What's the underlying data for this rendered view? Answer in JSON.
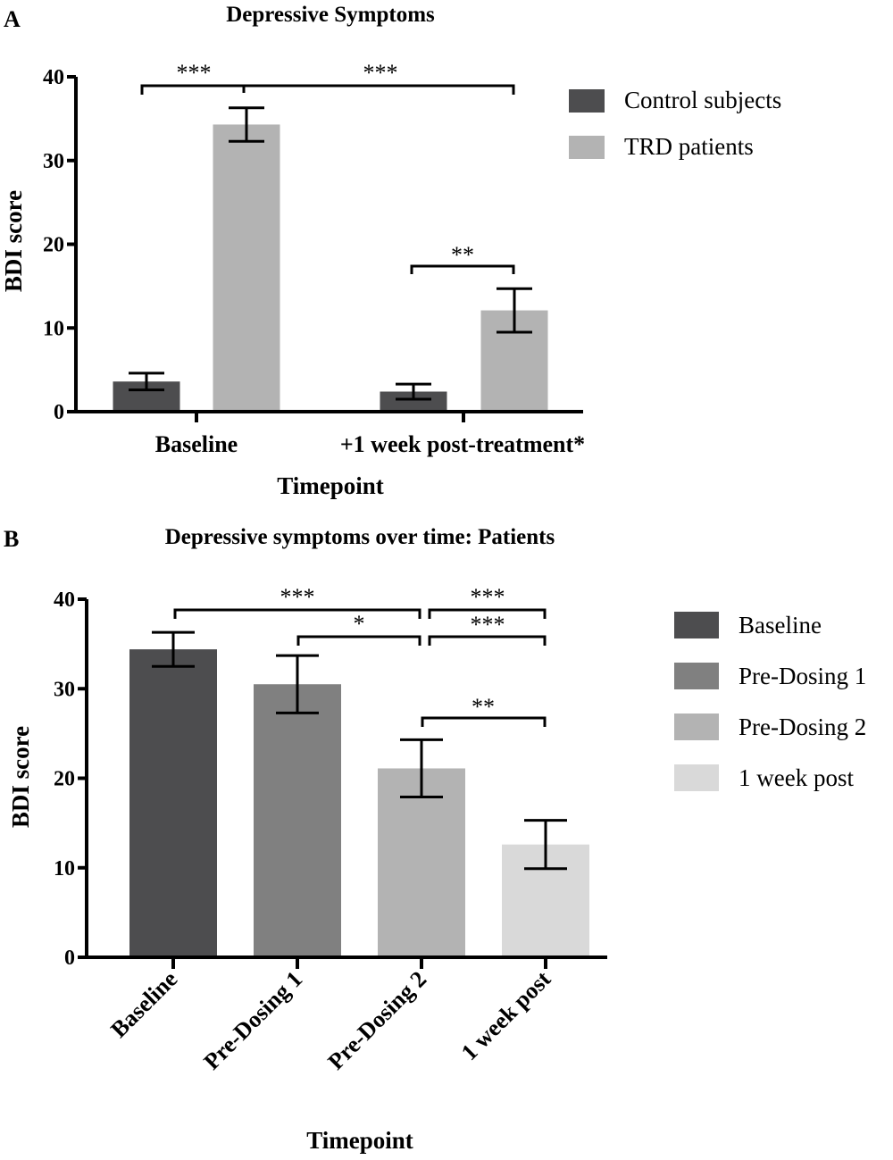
{
  "panels": {
    "a": {
      "label": "A"
    },
    "b": {
      "label": "B"
    }
  },
  "colors": {
    "control": "#4d4d4f",
    "trd": "#b3b3b3",
    "baseline": "#4d4d4f",
    "predosing1": "#808080",
    "predosing2": "#b3b3b3",
    "week_post": "#d9d9d9",
    "axis": "#000000"
  },
  "chart_data": [
    {
      "id": "a",
      "type": "bar",
      "title": "Depressive Symptoms",
      "xlabel": "Timepoint",
      "ylabel": "BDI score",
      "ylim": [
        0,
        40
      ],
      "yticks": [
        0,
        10,
        20,
        30,
        40
      ],
      "categories": [
        "Baseline",
        "+1 week post-treatment*"
      ],
      "series": [
        {
          "name": "Control subjects",
          "values": [
            3.6,
            2.4
          ],
          "errors": [
            1.0,
            0.9
          ],
          "color": "#4d4d4f"
        },
        {
          "name": "TRD patients",
          "values": [
            34.3,
            12.1
          ],
          "errors": [
            2.0,
            2.6
          ],
          "color": "#b3b3b3"
        }
      ],
      "legend": [
        "Control subjects",
        "TRD patients"
      ],
      "legend_position": "right",
      "significance": [
        {
          "label": "***",
          "from": "Baseline / Control subjects",
          "to": "Baseline / TRD patients"
        },
        {
          "label": "***",
          "from": "Baseline / TRD patients",
          "to": "+1 week post-treatment* / TRD patients"
        },
        {
          "label": "**",
          "from": "+1 week post-treatment* / Control subjects",
          "to": "+1 week post-treatment* / TRD patients"
        }
      ]
    },
    {
      "id": "b",
      "type": "bar",
      "title": "Depressive symptoms over time: Patients",
      "xlabel": "Timepoint",
      "ylabel": "BDI score",
      "ylim": [
        0,
        40
      ],
      "yticks": [
        0,
        10,
        20,
        30,
        40
      ],
      "categories": [
        "Baseline",
        "Pre-Dosing 1",
        "Pre-Dosing 2",
        "1 week post"
      ],
      "values": [
        34.4,
        30.5,
        21.1,
        12.6
      ],
      "errors": [
        1.9,
        3.2,
        3.2,
        2.7
      ],
      "colors": [
        "#4d4d4f",
        "#808080",
        "#b3b3b3",
        "#d9d9d9"
      ],
      "legend": [
        "Baseline",
        "Pre-Dosing 1",
        "Pre-Dosing 2",
        "1 week post"
      ],
      "legend_position": "right",
      "significance": [
        {
          "label": "***",
          "from": "Baseline",
          "to": "Pre-Dosing 2"
        },
        {
          "label": "*",
          "from": "Pre-Dosing 1",
          "to": "Pre-Dosing 2"
        },
        {
          "label": "***",
          "from": "Pre-Dosing 2",
          "to": "1 week post"
        },
        {
          "label": "***",
          "from": "Pre-Dosing 2",
          "to": "1 week post"
        },
        {
          "label": "**",
          "from": "Pre-Dosing 2",
          "to": "1 week post"
        }
      ]
    }
  ]
}
